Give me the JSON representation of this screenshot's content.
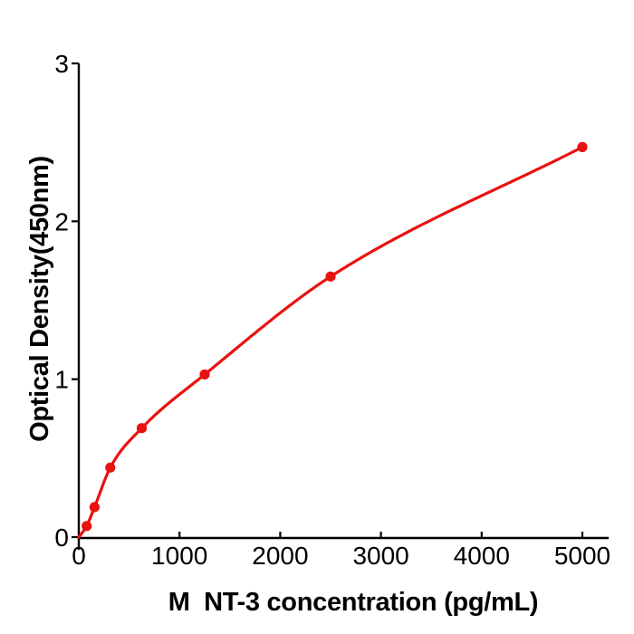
{
  "figure": {
    "background": "#ffffff",
    "axis_color": "#000000",
    "accent_red": "#e8120f"
  },
  "chart_data": {
    "type": "scatter",
    "title": "",
    "xlabel": "M  NT-3 concentration (pg/mL)",
    "ylabel": "Optical Density(450nm)",
    "x": [
      78.125,
      156.25,
      312.5,
      625,
      1250,
      2500,
      5000
    ],
    "y": [
      0.07,
      0.19,
      0.44,
      0.69,
      1.03,
      1.65,
      2.47
    ],
    "curve_start": {
      "x": 0,
      "y": 0
    },
    "curve_style": "smooth fitted curve through points (4PL standard curve)",
    "marker_color": "#e8120f",
    "line_color": "#e8120f",
    "xlim": [
      0,
      5260
    ],
    "ylim": [
      0,
      3
    ],
    "xticks": [
      0,
      1000,
      2000,
      3000,
      4000,
      5000
    ],
    "xtick_labels": [
      "0",
      "1000",
      "2000",
      "3000",
      "4000",
      "5000"
    ],
    "yticks": [
      0,
      1,
      2,
      3
    ],
    "ytick_labels": [
      "0",
      "1",
      "2",
      "3"
    ],
    "grid": false,
    "legend": null
  }
}
